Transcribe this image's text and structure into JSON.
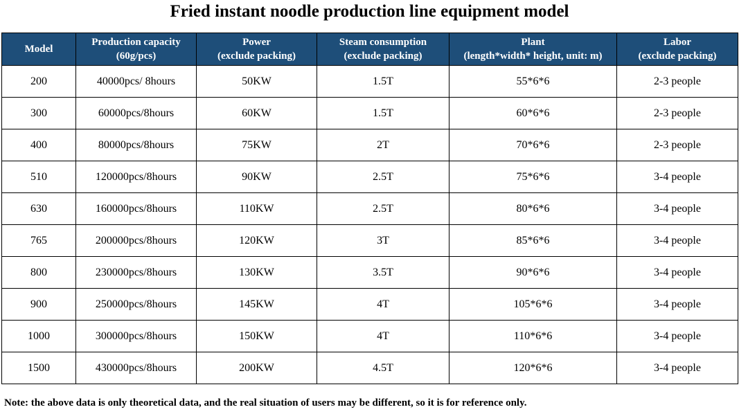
{
  "title": "Fried instant noodle production line equipment model",
  "table": {
    "headers": [
      {
        "line1": "Model",
        "line2": ""
      },
      {
        "line1": "Production capacity",
        "line2": "(60g/pcs)"
      },
      {
        "line1": "Power",
        "line2": "(exclude packing)"
      },
      {
        "line1": "Steam consumption",
        "line2": "(exclude packing)"
      },
      {
        "line1": "Plant",
        "line2": "(length*width* height, unit: m)"
      },
      {
        "line1": "Labor",
        "line2": "(exclude packing)"
      }
    ],
    "rows": [
      [
        "200",
        "40000pcs/ 8hours",
        "50KW",
        "1.5T",
        "55*6*6",
        "2-3 people"
      ],
      [
        "300",
        "60000pcs/8hours",
        "60KW",
        "1.5T",
        "60*6*6",
        "2-3 people"
      ],
      [
        "400",
        "80000pcs/8hours",
        "75KW",
        "2T",
        "70*6*6",
        "2-3 people"
      ],
      [
        "510",
        "120000pcs/8hours",
        "90KW",
        "2.5T",
        "75*6*6",
        "3-4 people"
      ],
      [
        "630",
        "160000pcs/8hours",
        "110KW",
        "2.5T",
        "80*6*6",
        "3-4 people"
      ],
      [
        "765",
        "200000pcs/8hours",
        "120KW",
        "3T",
        "85*6*6",
        "3-4 people"
      ],
      [
        "800",
        "230000pcs/8hours",
        "130KW",
        "3.5T",
        "90*6*6",
        "3-4 people"
      ],
      [
        "900",
        "250000pcs/8hours",
        "145KW",
        "4T",
        "105*6*6",
        "3-4 people"
      ],
      [
        "1000",
        "300000pcs/8hours",
        "150KW",
        "4T",
        "110*6*6",
        "3-4 people"
      ],
      [
        "1500",
        "430000pcs/8hours",
        "200KW",
        "4.5T",
        "120*6*6",
        "3-4 people"
      ]
    ]
  },
  "note": "Note: the above data is only theoretical data, and the real situation of users may be different, so it is for reference only.",
  "colors": {
    "header_bg": "#1e4e79",
    "header_text": "#ffffff",
    "border": "#000000"
  }
}
